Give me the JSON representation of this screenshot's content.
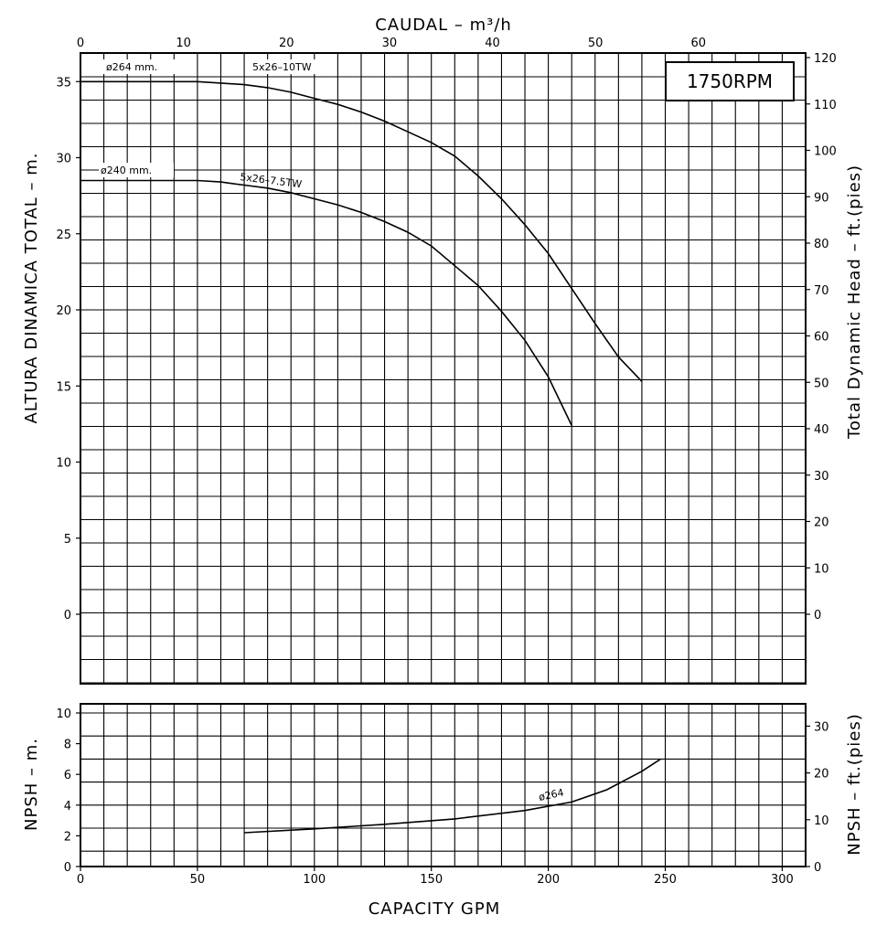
{
  "chart_data": [
    {
      "type": "line",
      "rpm_label": "1750RPM",
      "top_axis": {
        "title": "CAUDAL   – m³/h",
        "ticks": [
          "0",
          "10",
          "20",
          "30",
          "40",
          "50",
          "60"
        ]
      },
      "left_axis": {
        "title": "ALTURA DINAMICA TOTAL  –  m.",
        "ticks": [
          "0",
          "5",
          "10",
          "15",
          "20",
          "25",
          "30",
          "35"
        ],
        "ylim": [
          0,
          35
        ]
      },
      "right_axis": {
        "title": "Total Dynamic Head  –  ft.(pies)",
        "ticks": [
          "0",
          "10",
          "20",
          "30",
          "40",
          "50",
          "60",
          "70",
          "80",
          "90",
          "100",
          "110",
          "120"
        ]
      },
      "grid": true,
      "series": [
        {
          "name": "5x26–10TW",
          "diameter_label": "ø264 mm.",
          "x_gpm": [
            0,
            10,
            20,
            30,
            40,
            50,
            60,
            70,
            80,
            90,
            100,
            110,
            120,
            130,
            140,
            150,
            160,
            170,
            180,
            190,
            200,
            210,
            220,
            230,
            240
          ],
          "y_m": [
            35.0,
            35.0,
            35.0,
            35.0,
            35.0,
            35.0,
            34.9,
            34.8,
            34.6,
            34.3,
            33.9,
            33.5,
            33.0,
            32.4,
            31.7,
            31.0,
            30.1,
            28.8,
            27.3,
            25.6,
            23.7,
            21.4,
            19.1,
            16.9,
            15.3
          ]
        },
        {
          "name": "5x26–7.5TW",
          "diameter_label": "ø240 mm.",
          "x_gpm": [
            0,
            10,
            20,
            30,
            40,
            50,
            60,
            70,
            80,
            90,
            100,
            110,
            120,
            130,
            140,
            150,
            160,
            170,
            180,
            190,
            200,
            210
          ],
          "y_m": [
            28.5,
            28.5,
            28.5,
            28.5,
            28.5,
            28.5,
            28.4,
            28.2,
            28.0,
            27.7,
            27.3,
            26.9,
            26.4,
            25.8,
            25.1,
            24.2,
            22.9,
            21.6,
            19.9,
            18.0,
            15.6,
            12.4
          ]
        }
      ]
    },
    {
      "type": "line",
      "left_axis": {
        "title": "NPSH  –  m.",
        "ticks": [
          "0",
          "2",
          "4",
          "6",
          "8",
          "10"
        ],
        "ylim": [
          0,
          10
        ]
      },
      "right_axis": {
        "title": "NPSH  –  ft.(pies)",
        "ticks": [
          "0",
          "10",
          "20",
          "30"
        ]
      },
      "bottom_axis": {
        "title": "CAPACITY  GPM",
        "ticks": [
          "0",
          "50",
          "100",
          "150",
          "200",
          "250",
          "300"
        ],
        "xlim": [
          0,
          310
        ]
      },
      "grid": true,
      "series": [
        {
          "name": "ø264",
          "x_gpm": [
            70,
            100,
            130,
            160,
            190,
            210,
            225,
            240,
            248
          ],
          "y_m": [
            2.2,
            2.45,
            2.75,
            3.1,
            3.65,
            4.2,
            5.0,
            6.2,
            7.0
          ]
        }
      ]
    }
  ]
}
